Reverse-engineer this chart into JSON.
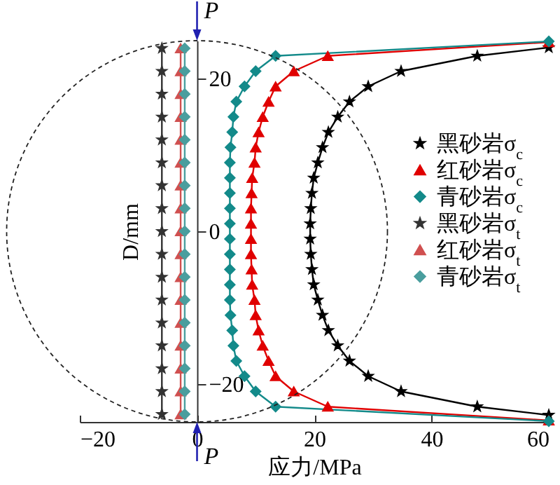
{
  "chart_data": {
    "type": "line",
    "xlabel": "应力/MPa",
    "ylabel": "D/mm",
    "xlim": [
      -20,
      60
    ],
    "ylim": [
      -25,
      25
    ],
    "xticks": [
      -20,
      0,
      20,
      40,
      60
    ],
    "yticks": [
      -20,
      0,
      20
    ],
    "grid": false,
    "legend": "right",
    "annotations": [
      "P",
      "P"
    ],
    "series": [
      {
        "name": "黑砂岩σ$_{c}$",
        "color": "#000000",
        "marker": "star",
        "x": [
          60,
          47.8,
          34.8,
          29.2,
          26.0,
          24.0,
          22.4,
          21.4,
          20.6,
          19.9,
          19.6,
          19.4,
          19.3,
          19.3,
          19.4,
          19.6,
          19.9,
          20.6,
          21.4,
          22.4,
          24.0,
          26.0,
          29.2,
          34.8,
          47.8,
          60
        ],
        "values": [
          24.1,
          23,
          21,
          19,
          17,
          15,
          13,
          11,
          9,
          7,
          5,
          3,
          1,
          -1,
          -3,
          -5,
          -7,
          -9,
          -11,
          -13,
          -15,
          -17,
          -19,
          -21,
          -23,
          -24.1
        ]
      },
      {
        "name": "红砂岩σ$_{c}$",
        "color": "#e00000",
        "marker": "triangle",
        "x": [
          60,
          22.3,
          16.5,
          13.4,
          12.2,
          11.2,
          10.5,
          10.0,
          9.8,
          9.4,
          9.3,
          9.2,
          9.2,
          9.2,
          9.2,
          9.3,
          9.4,
          9.8,
          10.0,
          10.5,
          11.2,
          12.2,
          13.4,
          16.5,
          22.3,
          60
        ],
        "values": [
          24.8,
          23,
          21,
          19,
          17,
          15,
          13,
          11,
          9,
          7,
          5,
          3,
          1,
          -1,
          -3,
          -5,
          -7,
          -9,
          -11,
          -13,
          -15,
          -17,
          -19,
          -21,
          -23,
          -24.8
        ]
      },
      {
        "name": "青砂岩σ$_{c}$",
        "color": "#138a8a",
        "marker": "diamond",
        "x": [
          60,
          13.4,
          10.0,
          8.1,
          6.7,
          6.2,
          6.0,
          5.7,
          5.6,
          5.6,
          5.6,
          5.6,
          5.6,
          5.6,
          5.6,
          5.6,
          5.6,
          5.6,
          5.7,
          6.0,
          6.2,
          6.7,
          8.1,
          10.0,
          13.4,
          60
        ],
        "values": [
          24.9,
          23,
          21,
          19,
          17,
          15,
          13,
          11,
          9,
          7,
          5,
          3,
          1,
          -1,
          -3,
          -5,
          -7,
          -9,
          -11,
          -13,
          -15,
          -17,
          -19,
          -21,
          -23,
          -24.9
        ]
      },
      {
        "name": "黑砂岩σ$_{t}$",
        "color": "#333333",
        "marker": "star",
        "x": [
          -6,
          -6,
          -6,
          -6,
          -6,
          -6,
          -6,
          -6,
          -6,
          -6,
          -6,
          -6,
          -6,
          -6,
          -6,
          -6,
          -6
        ],
        "values": [
          24,
          21,
          18,
          15,
          12,
          9,
          6,
          3,
          0,
          -3,
          -6,
          -9,
          -12,
          -15,
          -18,
          -21,
          -24
        ]
      },
      {
        "name": "红砂岩σ$_{t}$",
        "color": "#d05050",
        "marker": "triangle",
        "x": [
          -2.8,
          -2.8,
          -2.8,
          -2.8,
          -2.8,
          -2.8,
          -2.8,
          -2.8,
          -2.8,
          -2.8,
          -2.8,
          -2.8,
          -2.8,
          -2.8,
          -2.8,
          -2.8,
          -2.8
        ],
        "values": [
          24,
          21,
          18,
          15,
          12,
          9,
          6,
          3,
          0,
          -3,
          -6,
          -9,
          -12,
          -15,
          -18,
          -21,
          -24
        ]
      },
      {
        "name": "青砂岩σ$_{t}$",
        "color": "#4a9e9e",
        "marker": "diamond",
        "x": [
          -2.1,
          -2.1,
          -2.1,
          -2.1,
          -2.1,
          -2.1,
          -2.1,
          -2.1,
          -2.1,
          -2.1,
          -2.1,
          -2.1,
          -2.1,
          -2.1,
          -2.1,
          -2.1,
          -2.1
        ],
        "values": [
          24,
          21,
          18,
          15,
          12,
          9,
          6,
          3,
          0,
          -3,
          -6,
          -9,
          -12,
          -15,
          -18,
          -21,
          -24
        ]
      }
    ]
  }
}
